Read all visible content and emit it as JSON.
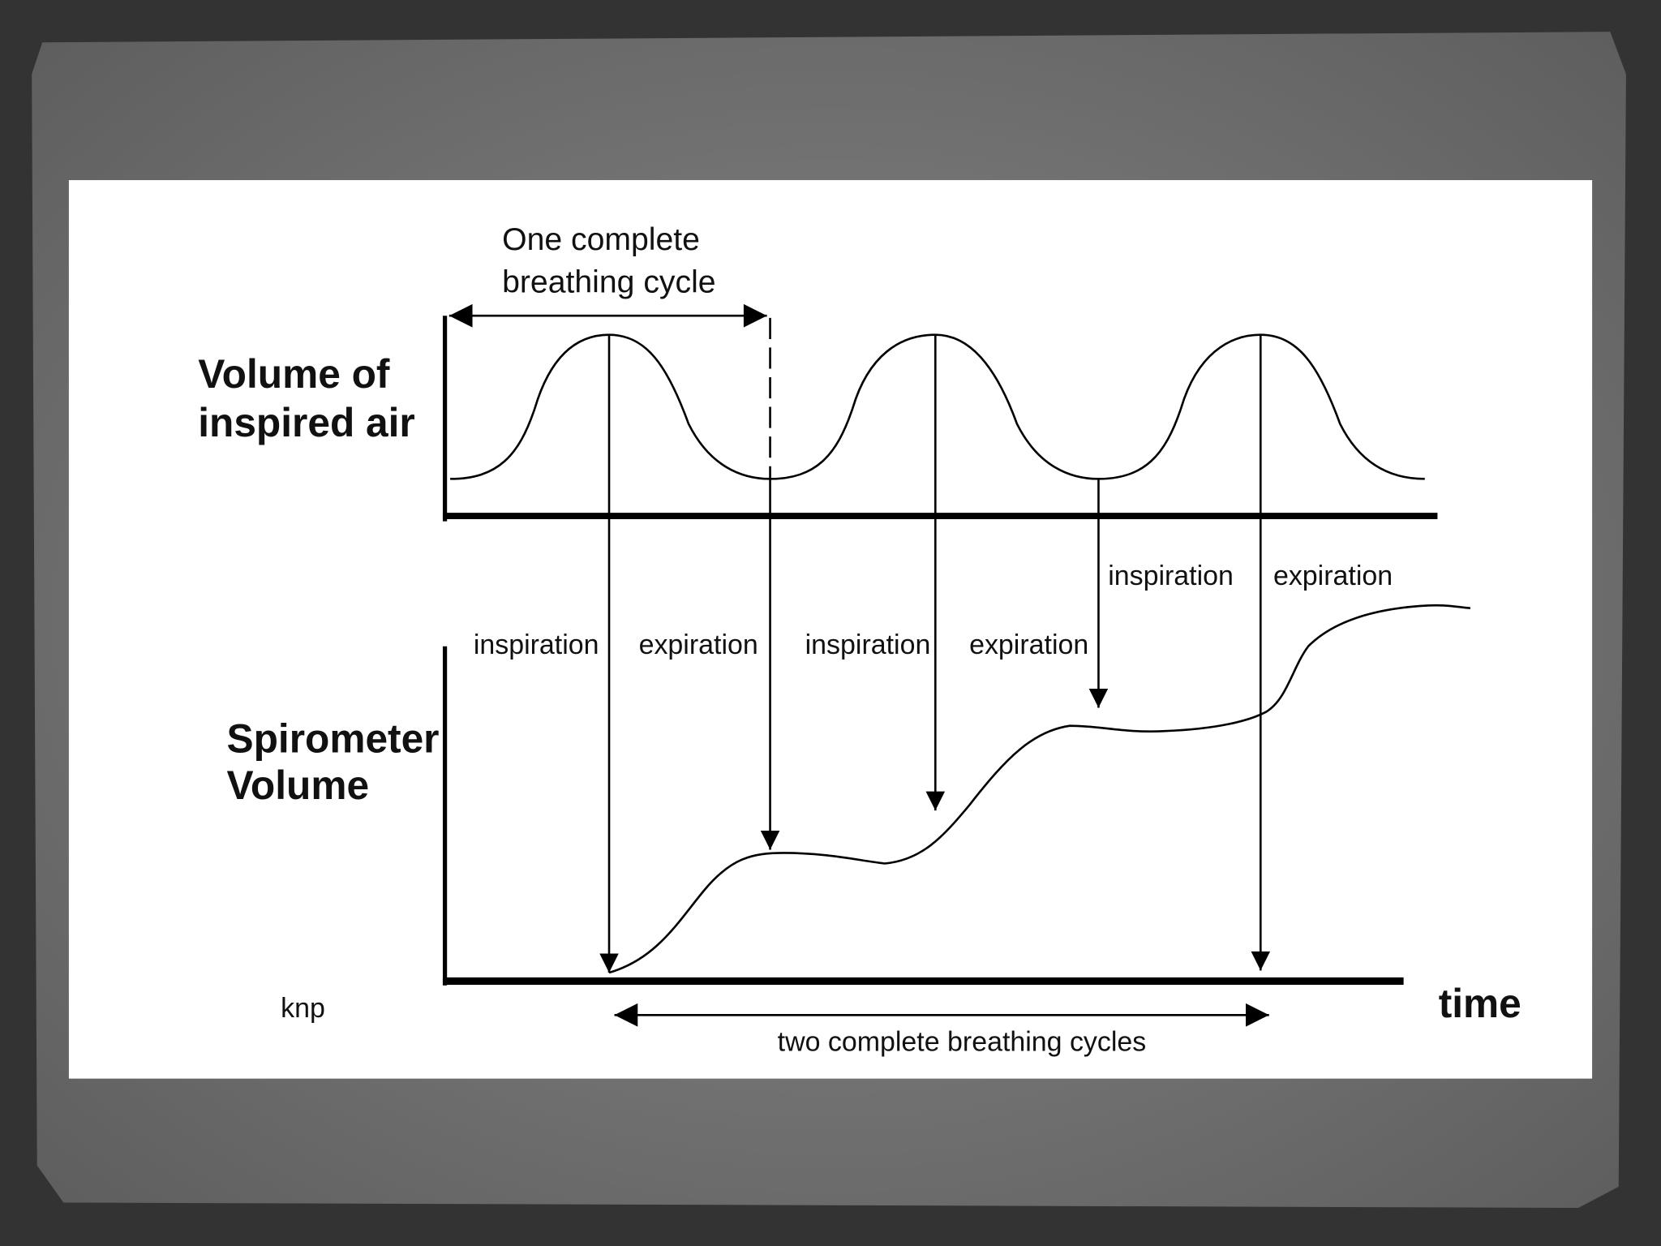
{
  "top_panel": {
    "label": [
      "Volume of",
      "inspired air"
    ],
    "cycle_annotation": [
      "One complete",
      "breathing cycle"
    ]
  },
  "bottom_panel": {
    "label": [
      "Spirometer",
      "Volume"
    ]
  },
  "phases": [
    "inspiration",
    "expiration",
    "inspiration",
    "expiration",
    "inspiration",
    "expiration"
  ],
  "x_axis_label": "time",
  "span_annotation": "two complete breathing cycles",
  "credit": "knp"
}
